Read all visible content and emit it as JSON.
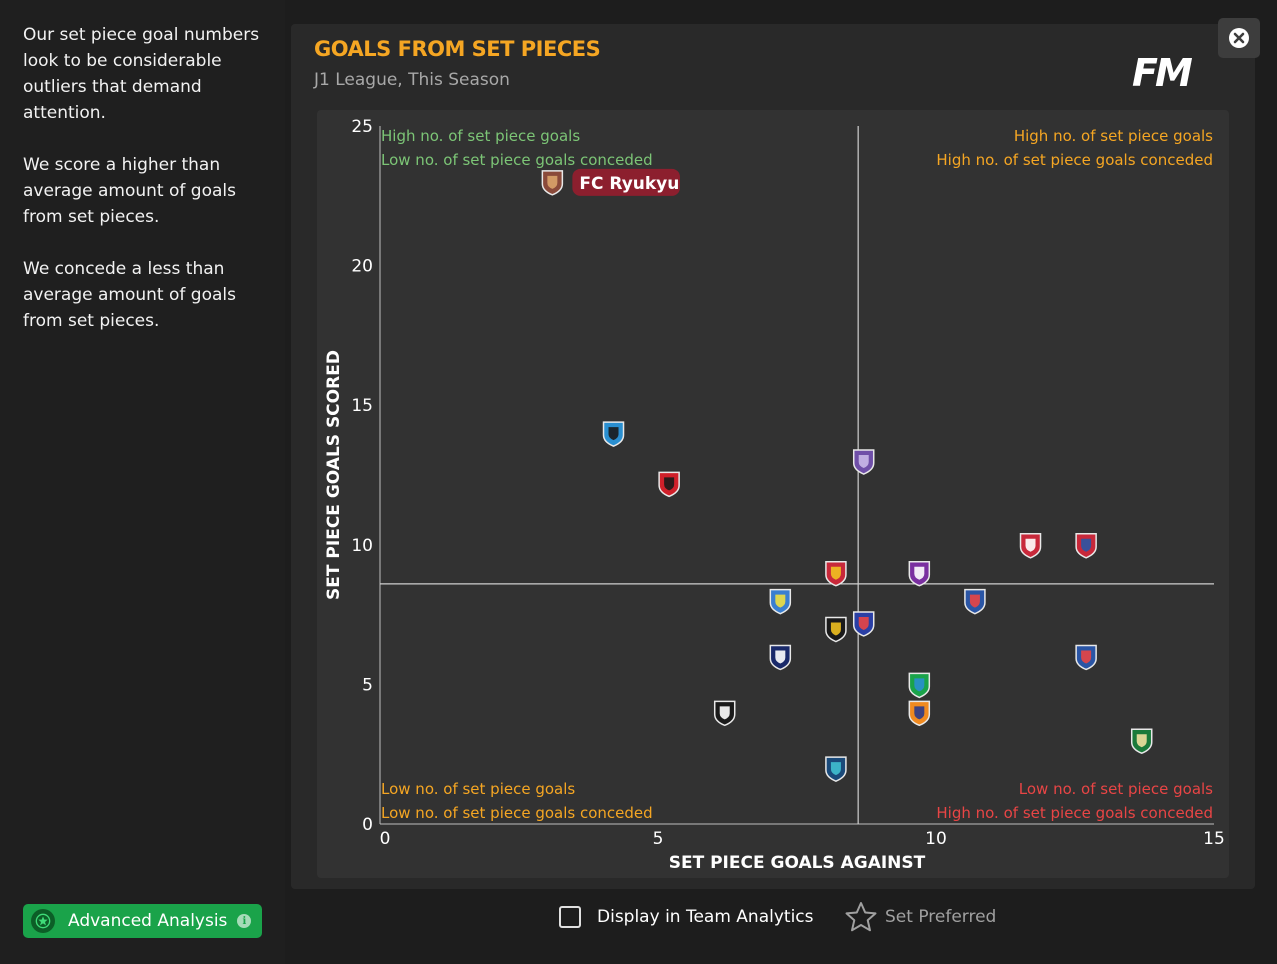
{
  "sidebar": {
    "insights": [
      "Our set piece goal numbers look to be considerable outliers that demand attention.",
      "We score a higher than average amount of goals from set pieces.",
      "We concede a less than average amount of goals from set pieces."
    ],
    "advanced_button": "Advanced Analysis",
    "advanced_icon": "star-badge-icon",
    "info_icon": "info-icon"
  },
  "panel": {
    "title": "GOALS FROM SET PIECES",
    "subtitle": "J1 League, This Season",
    "logo": "FM",
    "close_icon": "close-icon"
  },
  "footer": {
    "checkbox_label": "Display in Team Analytics",
    "checkbox_checked": false,
    "preferred_label": "Set Preferred",
    "preferred_icon": "star-outline-icon"
  },
  "colors": {
    "title": "#f5a623",
    "quadrant_good": "#7cc576",
    "quadrant_mixed": "#f5a623",
    "quadrant_bad": "#e84545",
    "highlight_badge": "#8c1f2e",
    "accent_green": "#1aa34a"
  },
  "chart_data": {
    "type": "scatter",
    "xlabel": "SET PIECE GOALS AGAINST",
    "ylabel": "SET PIECE GOALS SCORED",
    "xlim": [
      0,
      15
    ],
    "ylim": [
      0,
      25
    ],
    "xticks": [
      0,
      5,
      10,
      15
    ],
    "yticks": [
      0,
      5,
      10,
      15,
      20,
      25
    ],
    "grid": false,
    "average_lines": {
      "x": 8.6,
      "y": 8.6
    },
    "quadrants": [
      {
        "position": "top-left",
        "lines": [
          "High no. of set piece goals",
          "Low no. of set piece goals conceded"
        ],
        "colors": [
          "#7cc576",
          "#7cc576"
        ]
      },
      {
        "position": "top-right",
        "lines": [
          "High no. of set piece goals",
          "High no. of set piece goals conceded"
        ],
        "colors": [
          "#f5a623",
          "#f5a623"
        ]
      },
      {
        "position": "bottom-left",
        "lines": [
          "Low no. of set piece goals",
          "Low no. of set piece goals conceded"
        ],
        "colors": [
          "#f5a623",
          "#f5a623"
        ]
      },
      {
        "position": "bottom-right",
        "lines": [
          "Low no. of set piece goals",
          "High no. of set piece goals conceded"
        ],
        "colors": [
          "#e84545",
          "#e84545"
        ]
      }
    ],
    "points": [
      {
        "x": 3.1,
        "y": 23,
        "label": "FC Ryukyu",
        "highlight": true,
        "colors": [
          "#8a4a3a",
          "#d9a36a"
        ]
      },
      {
        "x": 4.2,
        "y": 14,
        "colors": [
          "#2a8fd0",
          "#1a1a1a"
        ]
      },
      {
        "x": 5.2,
        "y": 12.2,
        "colors": [
          "#d0202a",
          "#1a1a1a"
        ]
      },
      {
        "x": 8.7,
        "y": 13,
        "colors": [
          "#6f4fa8",
          "#c9b8e8"
        ]
      },
      {
        "x": 11.7,
        "y": 10,
        "colors": [
          "#c8283a",
          "#ffffff"
        ]
      },
      {
        "x": 12.7,
        "y": 10,
        "colors": [
          "#c8283a",
          "#2a55a5"
        ]
      },
      {
        "x": 8.2,
        "y": 9,
        "colors": [
          "#c8283a",
          "#f0c020"
        ]
      },
      {
        "x": 9.7,
        "y": 9,
        "colors": [
          "#7a2fa0",
          "#ffffff"
        ]
      },
      {
        "x": 7.2,
        "y": 8,
        "colors": [
          "#3a7fd0",
          "#f0e040"
        ]
      },
      {
        "x": 10.7,
        "y": 8,
        "colors": [
          "#2a55a5",
          "#e84545"
        ]
      },
      {
        "x": 8.2,
        "y": 7,
        "colors": [
          "#1a1a1a",
          "#f0c020"
        ]
      },
      {
        "x": 8.7,
        "y": 7.2,
        "colors": [
          "#2a3fa5",
          "#e84545"
        ]
      },
      {
        "x": 7.2,
        "y": 6,
        "colors": [
          "#1a2a6a",
          "#ffffff"
        ]
      },
      {
        "x": 12.7,
        "y": 6,
        "colors": [
          "#2a55a5",
          "#e84545"
        ]
      },
      {
        "x": 9.7,
        "y": 5,
        "colors": [
          "#1aa34a",
          "#2a8fd0"
        ]
      },
      {
        "x": 9.7,
        "y": 4,
        "colors": [
          "#f08a20",
          "#2a3a8a"
        ]
      },
      {
        "x": 6.2,
        "y": 4,
        "colors": [
          "#1a1a1a",
          "#ffffff"
        ]
      },
      {
        "x": 13.7,
        "y": 3,
        "colors": [
          "#1a7a3a",
          "#f0e0a0"
        ]
      },
      {
        "x": 8.2,
        "y": 2,
        "colors": [
          "#1a4a7a",
          "#40c0d0"
        ]
      }
    ]
  }
}
